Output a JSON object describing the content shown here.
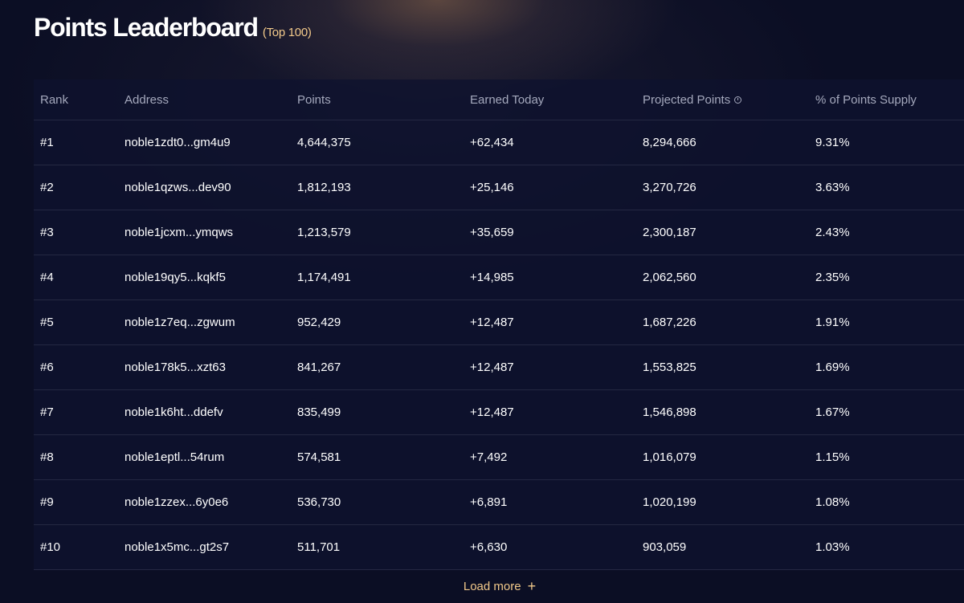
{
  "header": {
    "title": "Points Leaderboard",
    "subtitle": "(Top 100)"
  },
  "table": {
    "columns": {
      "rank": "Rank",
      "address": "Address",
      "points": "Points",
      "earned_today": "Earned Today",
      "projected_points": "Projected Points",
      "pct_supply": "% of Points Supply"
    },
    "projected_info_icon": "info-circle-icon",
    "rows": [
      {
        "rank": "#1",
        "address": "noble1zdt0...gm4u9",
        "points": "4,644,375",
        "earned_today": "+62,434",
        "projected_points": "8,294,666",
        "pct_supply": "9.31%"
      },
      {
        "rank": "#2",
        "address": "noble1qzws...dev90",
        "points": "1,812,193",
        "earned_today": "+25,146",
        "projected_points": "3,270,726",
        "pct_supply": "3.63%"
      },
      {
        "rank": "#3",
        "address": "noble1jcxm...ymqws",
        "points": "1,213,579",
        "earned_today": "+35,659",
        "projected_points": "2,300,187",
        "pct_supply": "2.43%"
      },
      {
        "rank": "#4",
        "address": "noble19qy5...kqkf5",
        "points": "1,174,491",
        "earned_today": "+14,985",
        "projected_points": "2,062,560",
        "pct_supply": "2.35%"
      },
      {
        "rank": "#5",
        "address": "noble1z7eq...zgwum",
        "points": "952,429",
        "earned_today": "+12,487",
        "projected_points": "1,687,226",
        "pct_supply": "1.91%"
      },
      {
        "rank": "#6",
        "address": "noble178k5...xzt63",
        "points": "841,267",
        "earned_today": "+12,487",
        "projected_points": "1,553,825",
        "pct_supply": "1.69%"
      },
      {
        "rank": "#7",
        "address": "noble1k6ht...ddefv",
        "points": "835,499",
        "earned_today": "+12,487",
        "projected_points": "1,546,898",
        "pct_supply": "1.67%"
      },
      {
        "rank": "#8",
        "address": "noble1eptl...54rum",
        "points": "574,581",
        "earned_today": "+7,492",
        "projected_points": "1,016,079",
        "pct_supply": "1.15%"
      },
      {
        "rank": "#9",
        "address": "noble1zzex...6y0e6",
        "points": "536,730",
        "earned_today": "+6,891",
        "projected_points": "1,020,199",
        "pct_supply": "1.08%"
      },
      {
        "rank": "#10",
        "address": "noble1x5mc...gt2s7",
        "points": "511,701",
        "earned_today": "+6,630",
        "projected_points": "903,059",
        "pct_supply": "1.03%"
      }
    ]
  },
  "load_more": {
    "label": "Load more",
    "icon": "plus-icon"
  },
  "colors": {
    "background": "#0b0e24",
    "accent": "#f2c98a",
    "header_text": "#a5a9bd",
    "divider": "#242842"
  }
}
